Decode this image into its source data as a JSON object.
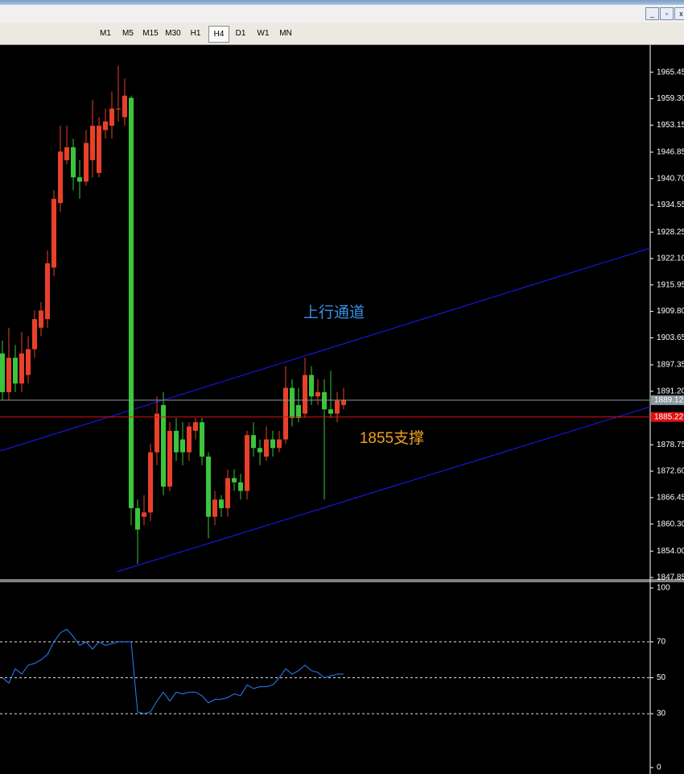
{
  "toolbar": {
    "timeframes": [
      "M1",
      "M5",
      "M15",
      "M30",
      "H1",
      "H4",
      "D1",
      "W1",
      "MN"
    ],
    "active_index": 5
  },
  "chart_data": [
    {
      "type": "candlestick",
      "up_color": "#e8402a",
      "down_color": "#3cc43c",
      "open": [
        1900,
        1891,
        1899,
        1893,
        1895,
        1901,
        1906,
        1908,
        1920,
        1935,
        1945,
        1948,
        1941,
        1940,
        1945,
        1942,
        1952,
        1953,
        1957,
        1955,
        1959.5,
        1864,
        1862,
        1863,
        1877,
        1888,
        1869,
        1882,
        1880,
        1877,
        1882,
        1884,
        1876,
        1862,
        1866,
        1864,
        1871,
        1870,
        1868,
        1881,
        1878,
        1876,
        1880,
        1878,
        1880,
        1892,
        1888,
        1886,
        1895,
        1890,
        1891,
        1887,
        1886,
        1888
      ],
      "high": [
        1903,
        1906,
        1902,
        1905,
        1904,
        1910,
        1912,
        1924,
        1938,
        1953,
        1953,
        1950,
        1945,
        1952,
        1959,
        1955,
        1957,
        1961,
        1967,
        1964,
        1960,
        1866,
        1867,
        1879,
        1890,
        1891,
        1884,
        1885,
        1884,
        1884,
        1885,
        1885,
        1877,
        1868,
        1867,
        1873,
        1873,
        1872,
        1882,
        1884,
        1880,
        1883,
        1882,
        1882,
        1897,
        1894,
        1892,
        1899,
        1897,
        1894,
        1894,
        1896,
        1891,
        1892
      ],
      "low": [
        1889,
        1889,
        1891,
        1891,
        1893,
        1899,
        1904,
        1906,
        1918,
        1933,
        1944,
        1938,
        1936,
        1939,
        1941,
        1941,
        1950,
        1950,
        1954,
        1953,
        1860,
        1851,
        1860,
        1861,
        1874,
        1867,
        1868,
        1875,
        1874,
        1875,
        1880,
        1874,
        1857,
        1860,
        1862,
        1862,
        1868,
        1866,
        1866,
        1876,
        1874,
        1875,
        1876,
        1877,
        1879,
        1883,
        1884,
        1885,
        1888,
        1888,
        1866,
        1885,
        1884,
        1887
      ],
      "close": [
        1891,
        1899,
        1893,
        1900,
        1901,
        1908,
        1910,
        1921,
        1936,
        1947,
        1948,
        1941,
        1940,
        1949,
        1953,
        1953,
        1954,
        1957,
        1957,
        1960,
        1864,
        1859,
        1863,
        1877,
        1886,
        1869,
        1882,
        1877,
        1877,
        1883,
        1884,
        1876,
        1862,
        1866,
        1864,
        1871,
        1870,
        1868,
        1881,
        1878,
        1877,
        1880,
        1878,
        1880,
        1892,
        1885,
        1885,
        1895,
        1890,
        1891,
        1887,
        1886,
        1889,
        1889.12
      ],
      "ylim": [
        1847.3,
        1971.4
      ],
      "yticks": [
        1965.45,
        {
          "value": 1959.3,
          "label": "1959.30"
        },
        1953.15,
        1946.85,
        {
          "value": 1940.7,
          "label": "1940.70"
        },
        1934.55,
        1928.25,
        {
          "value": 1922.1,
          "label": "1922.10"
        },
        1915.95,
        {
          "value": 1909.8,
          "label": "1909.80"
        },
        1903.65,
        1897.35,
        {
          "value": 1891.2,
          "label": "1891.20"
        },
        1878.75,
        {
          "value": 1872.6,
          "label": "1872.60"
        },
        1866.45,
        {
          "value": 1860.3,
          "label": "1860.30"
        },
        {
          "value": 1854,
          "label": "1854.00"
        },
        1847.85
      ],
      "price_lines": [
        {
          "value": 1889.12,
          "color": "#8a9aa0"
        },
        {
          "value": 1885.22,
          "color": "#e01010"
        }
      ],
      "annotations": [
        {
          "text": "上行通道",
          "color": "#3a8fe8"
        },
        {
          "text": "1855支撑",
          "color": "#f0a020"
        }
      ]
    },
    {
      "type": "line",
      "color": "#2a7fff",
      "values": [
        50,
        47,
        55,
        52,
        57,
        58,
        60,
        63,
        70,
        75,
        77,
        73,
        68,
        70,
        66,
        70,
        68,
        69,
        70,
        70,
        70,
        31,
        30,
        31,
        37,
        42,
        37,
        42,
        41,
        42,
        42,
        40,
        36,
        38,
        38,
        39,
        41,
        40,
        46,
        44,
        45,
        45,
        46,
        50,
        55,
        52,
        54,
        57,
        54,
        53,
        50,
        51,
        52,
        52
      ],
      "ylim": [
        0,
        100
      ],
      "yticks": [
        0,
        30,
        50,
        70,
        100
      ]
    }
  ]
}
